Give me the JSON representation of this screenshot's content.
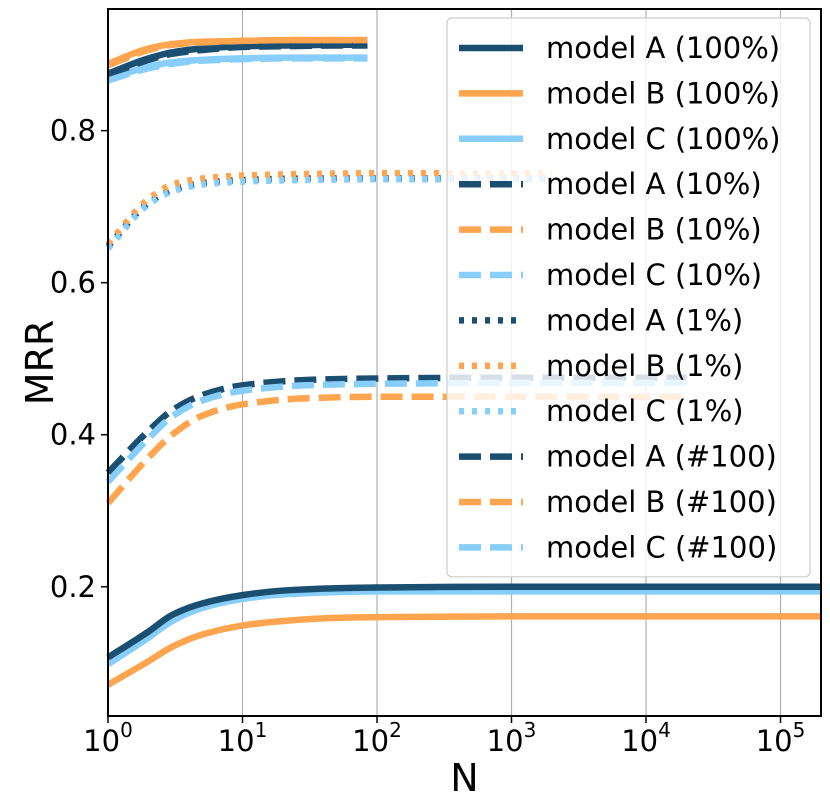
{
  "chart_data": {
    "type": "line",
    "title": "",
    "xlabel": "N",
    "ylabel": "MRR",
    "xscale": "log",
    "xlim": [
      1,
      200000
    ],
    "ylim": [
      0.03,
      0.96
    ],
    "grid": "vertical-major",
    "x_ticks": [
      {
        "value": 1,
        "base": "10",
        "exp": "0"
      },
      {
        "value": 10,
        "base": "10",
        "exp": "1"
      },
      {
        "value": 100,
        "base": "10",
        "exp": "2"
      },
      {
        "value": 1000,
        "base": "10",
        "exp": "3"
      },
      {
        "value": 10000,
        "base": "10",
        "exp": "4"
      },
      {
        "value": 100000,
        "base": "10",
        "exp": "5"
      }
    ],
    "y_ticks": [
      {
        "value": 0.2,
        "label": "0.2"
      },
      {
        "value": 0.4,
        "label": "0.4"
      },
      {
        "value": 0.6,
        "label": "0.6"
      },
      {
        "value": 0.8,
        "label": "0.8"
      }
    ],
    "legend_position": "top-right",
    "series": [
      {
        "name": "model A (100%)",
        "color": "#1b4f72",
        "style": "solid",
        "xmax": 85,
        "x": [
          1,
          2,
          3,
          5,
          10,
          20,
          50,
          85
        ],
        "y": [
          0.875,
          0.895,
          0.903,
          0.908,
          0.911,
          0.912,
          0.913,
          0.913
        ]
      },
      {
        "name": "model B (100%)",
        "color": "#ffa550",
        "style": "solid",
        "xmax": 85,
        "x": [
          1,
          2,
          3,
          5,
          10,
          20,
          50,
          85
        ],
        "y": [
          0.888,
          0.908,
          0.914,
          0.917,
          0.918,
          0.919,
          0.919,
          0.919
        ]
      },
      {
        "name": "model C (100%)",
        "color": "#87cefa",
        "style": "solid",
        "xmax": 85,
        "x": [
          1,
          2,
          3,
          5,
          10,
          20,
          50,
          85
        ],
        "y": [
          0.868,
          0.884,
          0.89,
          0.893,
          0.895,
          0.896,
          0.896,
          0.896
        ]
      },
      {
        "name": "model A (10%)",
        "color": "#1b4f72",
        "style": "dashed",
        "xmax": 85,
        "x": [
          1,
          2,
          3,
          5,
          10,
          20,
          50,
          85
        ],
        "y": [
          0.873,
          0.893,
          0.901,
          0.906,
          0.91,
          0.911,
          0.912,
          0.912
        ]
      },
      {
        "name": "model B (10%)",
        "color": "#ffa550",
        "style": "dashed",
        "xmax": 85,
        "x": [
          1,
          2,
          3,
          5,
          10,
          20,
          50,
          85
        ],
        "y": [
          0.886,
          0.906,
          0.913,
          0.916,
          0.918,
          0.919,
          0.919,
          0.919
        ]
      },
      {
        "name": "model C (10%)",
        "color": "#87cefa",
        "style": "dashed",
        "xmax": 85,
        "x": [
          1,
          2,
          3,
          5,
          10,
          20,
          50,
          85
        ],
        "y": [
          0.866,
          0.882,
          0.888,
          0.892,
          0.894,
          0.895,
          0.895,
          0.895
        ]
      },
      {
        "name": "model A (1%)",
        "color": "#1b4f72",
        "style": "dotted",
        "xmax": 2000,
        "x": [
          1,
          2,
          3,
          5,
          10,
          30,
          100,
          500,
          2000
        ],
        "y": [
          0.648,
          0.705,
          0.722,
          0.731,
          0.735,
          0.737,
          0.737,
          0.737,
          0.737
        ]
      },
      {
        "name": "model B (1%)",
        "color": "#ffa550",
        "style": "dotted",
        "xmax": 2000,
        "x": [
          1,
          2,
          3,
          5,
          10,
          30,
          100,
          500,
          2000
        ],
        "y": [
          0.651,
          0.71,
          0.729,
          0.737,
          0.741,
          0.743,
          0.744,
          0.744,
          0.744
        ]
      },
      {
        "name": "model C (1%)",
        "color": "#87cefa",
        "style": "dotted",
        "xmax": 2000,
        "x": [
          1,
          2,
          3,
          5,
          10,
          30,
          100,
          500,
          2000
        ],
        "y": [
          0.645,
          0.703,
          0.72,
          0.729,
          0.733,
          0.735,
          0.736,
          0.736,
          0.736
        ]
      },
      {
        "name": "model A (#100)",
        "color": "#1b4f72",
        "style": "dashed",
        "xmax": 20000,
        "x": [
          1,
          2,
          3,
          5,
          10,
          30,
          100,
          1000,
          20000
        ],
        "y": [
          0.35,
          0.405,
          0.432,
          0.452,
          0.465,
          0.472,
          0.474,
          0.475,
          0.475
        ]
      },
      {
        "name": "model B (#100)",
        "color": "#ffa550",
        "style": "dashed",
        "xmax": 20000,
        "x": [
          1,
          2,
          3,
          5,
          10,
          30,
          100,
          1000,
          20000
        ],
        "y": [
          0.31,
          0.37,
          0.4,
          0.425,
          0.44,
          0.448,
          0.45,
          0.45,
          0.45
        ]
      },
      {
        "name": "model C (#100)",
        "color": "#87cefa",
        "style": "dashed",
        "xmax": 20000,
        "x": [
          1,
          2,
          3,
          5,
          10,
          30,
          100,
          1000,
          20000
        ],
        "y": [
          0.338,
          0.395,
          0.424,
          0.445,
          0.458,
          0.465,
          0.467,
          0.468,
          0.468
        ]
      },
      {
        "name": "",
        "color": "#87cefa",
        "style": "solid",
        "xmax": 200000,
        "x": [
          1,
          2,
          3,
          5,
          10,
          20,
          50,
          100,
          1000,
          200000
        ],
        "y": [
          0.098,
          0.133,
          0.155,
          0.172,
          0.184,
          0.19,
          0.193,
          0.194,
          0.194,
          0.194
        ]
      },
      {
        "name": "",
        "color": "#1b4f72",
        "style": "solid",
        "xmax": 200000,
        "x": [
          1,
          2,
          3,
          5,
          10,
          20,
          50,
          100,
          1000,
          200000
        ],
        "y": [
          0.107,
          0.141,
          0.163,
          0.178,
          0.189,
          0.195,
          0.198,
          0.199,
          0.2,
          0.2
        ]
      },
      {
        "name": "",
        "color": "#ffa550",
        "style": "solid",
        "xmax": 200000,
        "x": [
          1,
          2,
          3,
          5,
          10,
          20,
          50,
          100,
          1000,
          200000
        ],
        "y": [
          0.071,
          0.102,
          0.121,
          0.137,
          0.149,
          0.155,
          0.159,
          0.16,
          0.161,
          0.161
        ]
      }
    ],
    "legend": [
      {
        "label": "model A (100%)",
        "color": "#1b4f72",
        "style": "solid"
      },
      {
        "label": "model B (100%)",
        "color": "#ffa550",
        "style": "solid"
      },
      {
        "label": "model C (100%)",
        "color": "#87cefa",
        "style": "solid"
      },
      {
        "label": "model A (10%)",
        "color": "#1b4f72",
        "style": "dashed"
      },
      {
        "label": "model B (10%)",
        "color": "#ffa550",
        "style": "dashed"
      },
      {
        "label": "model C (10%)",
        "color": "#87cefa",
        "style": "dashed"
      },
      {
        "label": "model A (1%)",
        "color": "#1b4f72",
        "style": "dotted"
      },
      {
        "label": "model B (1%)",
        "color": "#ffa550",
        "style": "dotted"
      },
      {
        "label": "model C (1%)",
        "color": "#87cefa",
        "style": "dotted"
      },
      {
        "label": "model A (#100)",
        "color": "#1b4f72",
        "style": "dashed"
      },
      {
        "label": "model B (#100)",
        "color": "#ffa550",
        "style": "dashed"
      },
      {
        "label": "model C (#100)",
        "color": "#87cefa",
        "style": "dashed"
      }
    ]
  }
}
